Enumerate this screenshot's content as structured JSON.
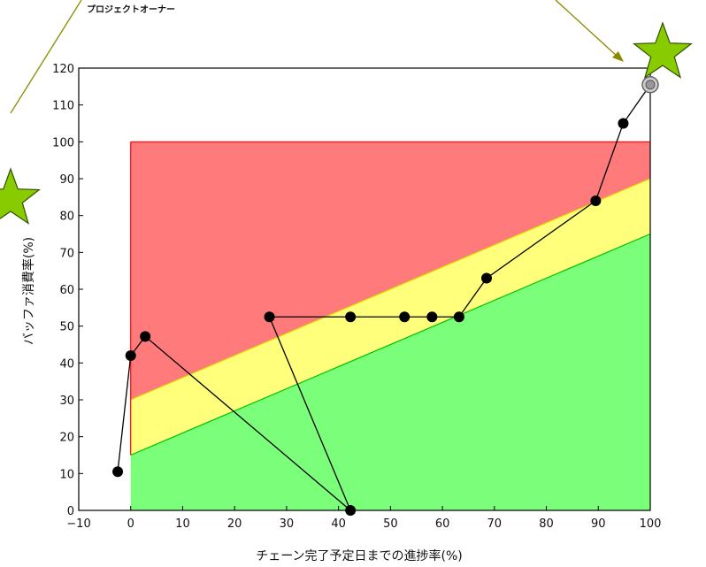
{
  "chart_data": {
    "type": "scatter",
    "title": "",
    "xlabel": "チェーン完了予定日までの進捗率(%)",
    "ylabel": "バッファ消費率(%)",
    "xlim": [
      -10,
      100
    ],
    "ylim": [
      0,
      120
    ],
    "x_ticks": [
      "−10",
      "0",
      "10",
      "20",
      "30",
      "40",
      "50",
      "60",
      "70",
      "80",
      "90",
      "100"
    ],
    "y_ticks": [
      "0",
      "10",
      "20",
      "30",
      "40",
      "50",
      "60",
      "70",
      "80",
      "90",
      "100",
      "110",
      "120"
    ],
    "zones": [
      {
        "name": "red",
        "color": "#ff7b7b",
        "edge": "#ff0000",
        "lower": [
          [
            0,
            30
          ],
          [
            100,
            90
          ]
        ],
        "upper": [
          [
            0,
            100
          ],
          [
            100,
            100
          ]
        ]
      },
      {
        "name": "yellow",
        "color": "#ffff7b",
        "edge": "#e0e000",
        "lower": [
          [
            0,
            15
          ],
          [
            100,
            75
          ]
        ],
        "upper": [
          [
            0,
            30
          ],
          [
            100,
            90
          ]
        ]
      },
      {
        "name": "green",
        "color": "#7bff7b",
        "edge": "#00c000",
        "lower": [
          [
            0,
            0
          ],
          [
            100,
            0
          ]
        ],
        "upper": [
          [
            0,
            15
          ],
          [
            100,
            75
          ]
        ]
      }
    ],
    "series": [
      {
        "points": [
          [
            -2.5,
            10.5
          ],
          [
            0,
            42
          ],
          [
            2.8,
            47.2
          ],
          [
            42.3,
            0
          ],
          [
            26.7,
            52.5
          ],
          [
            42.3,
            52.5
          ],
          [
            52.7,
            52.5
          ],
          [
            58,
            52.5
          ],
          [
            63.2,
            52.5
          ],
          [
            68.5,
            63
          ],
          [
            89.5,
            84
          ],
          [
            94.8,
            105
          ],
          [
            100,
            115.5
          ]
        ],
        "color": "#000000"
      }
    ],
    "highlight_point": [
      100,
      115.5
    ],
    "annotation": "プロジェクトオーナー",
    "arrow_color": "#8a8a00",
    "star_color": "#88cc00",
    "star_edge": "#2f4f00"
  }
}
